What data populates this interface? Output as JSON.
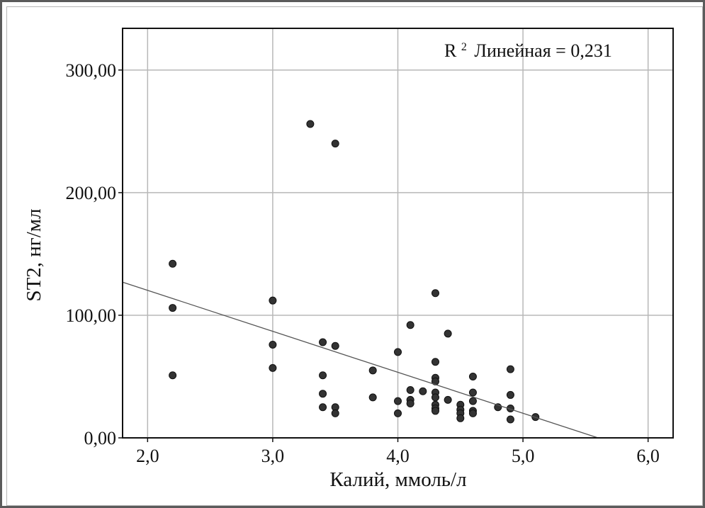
{
  "chart_data": {
    "type": "scatter",
    "xlabel": "Калий, ммоль/л",
    "ylabel": "ST2, нг/мл",
    "annotation": {
      "r2_label": "R",
      "r2_sup": "2",
      "r2_text": "Линейная = 0,231"
    },
    "xlim": [
      1.8,
      6.2
    ],
    "ylim": [
      0,
      334
    ],
    "x_ticks": [
      2.0,
      3.0,
      4.0,
      5.0,
      6.0
    ],
    "x_tick_labels": [
      "2,0",
      "3,0",
      "4,0",
      "5,0",
      "6,0"
    ],
    "y_ticks": [
      0,
      100,
      200,
      300
    ],
    "y_tick_labels": [
      "0,00",
      "100,00",
      "200,00",
      "300,00"
    ],
    "grid": true,
    "marker_color": "#333333",
    "line_color": "#555555",
    "points": [
      {
        "x": 2.2,
        "y": 142
      },
      {
        "x": 2.2,
        "y": 106
      },
      {
        "x": 2.2,
        "y": 51
      },
      {
        "x": 3.0,
        "y": 112
      },
      {
        "x": 3.0,
        "y": 76
      },
      {
        "x": 3.0,
        "y": 57
      },
      {
        "x": 3.3,
        "y": 256
      },
      {
        "x": 3.5,
        "y": 240
      },
      {
        "x": 3.4,
        "y": 78
      },
      {
        "x": 3.4,
        "y": 51
      },
      {
        "x": 3.4,
        "y": 36
      },
      {
        "x": 3.4,
        "y": 25
      },
      {
        "x": 3.5,
        "y": 75
      },
      {
        "x": 3.5,
        "y": 25
      },
      {
        "x": 3.5,
        "y": 20
      },
      {
        "x": 3.8,
        "y": 55
      },
      {
        "x": 3.8,
        "y": 33
      },
      {
        "x": 4.0,
        "y": 70
      },
      {
        "x": 4.0,
        "y": 30
      },
      {
        "x": 4.0,
        "y": 20
      },
      {
        "x": 4.1,
        "y": 92
      },
      {
        "x": 4.1,
        "y": 39
      },
      {
        "x": 4.1,
        "y": 31
      },
      {
        "x": 4.1,
        "y": 28
      },
      {
        "x": 4.2,
        "y": 38
      },
      {
        "x": 4.3,
        "y": 118
      },
      {
        "x": 4.3,
        "y": 62
      },
      {
        "x": 4.3,
        "y": 49
      },
      {
        "x": 4.3,
        "y": 46
      },
      {
        "x": 4.3,
        "y": 37
      },
      {
        "x": 4.3,
        "y": 33
      },
      {
        "x": 4.3,
        "y": 27
      },
      {
        "x": 4.3,
        "y": 24
      },
      {
        "x": 4.3,
        "y": 22
      },
      {
        "x": 4.4,
        "y": 85
      },
      {
        "x": 4.4,
        "y": 31
      },
      {
        "x": 4.5,
        "y": 27
      },
      {
        "x": 4.5,
        "y": 23
      },
      {
        "x": 4.5,
        "y": 20
      },
      {
        "x": 4.5,
        "y": 16
      },
      {
        "x": 4.6,
        "y": 50
      },
      {
        "x": 4.6,
        "y": 37
      },
      {
        "x": 4.6,
        "y": 30
      },
      {
        "x": 4.6,
        "y": 22
      },
      {
        "x": 4.6,
        "y": 20
      },
      {
        "x": 4.8,
        "y": 25
      },
      {
        "x": 4.9,
        "y": 56
      },
      {
        "x": 4.9,
        "y": 35
      },
      {
        "x": 4.9,
        "y": 24
      },
      {
        "x": 4.9,
        "y": 15
      },
      {
        "x": 5.1,
        "y": 17
      }
    ],
    "fit_line": {
      "x1": 1.8,
      "y1": 127,
      "x2": 5.6,
      "y2": 0
    }
  }
}
